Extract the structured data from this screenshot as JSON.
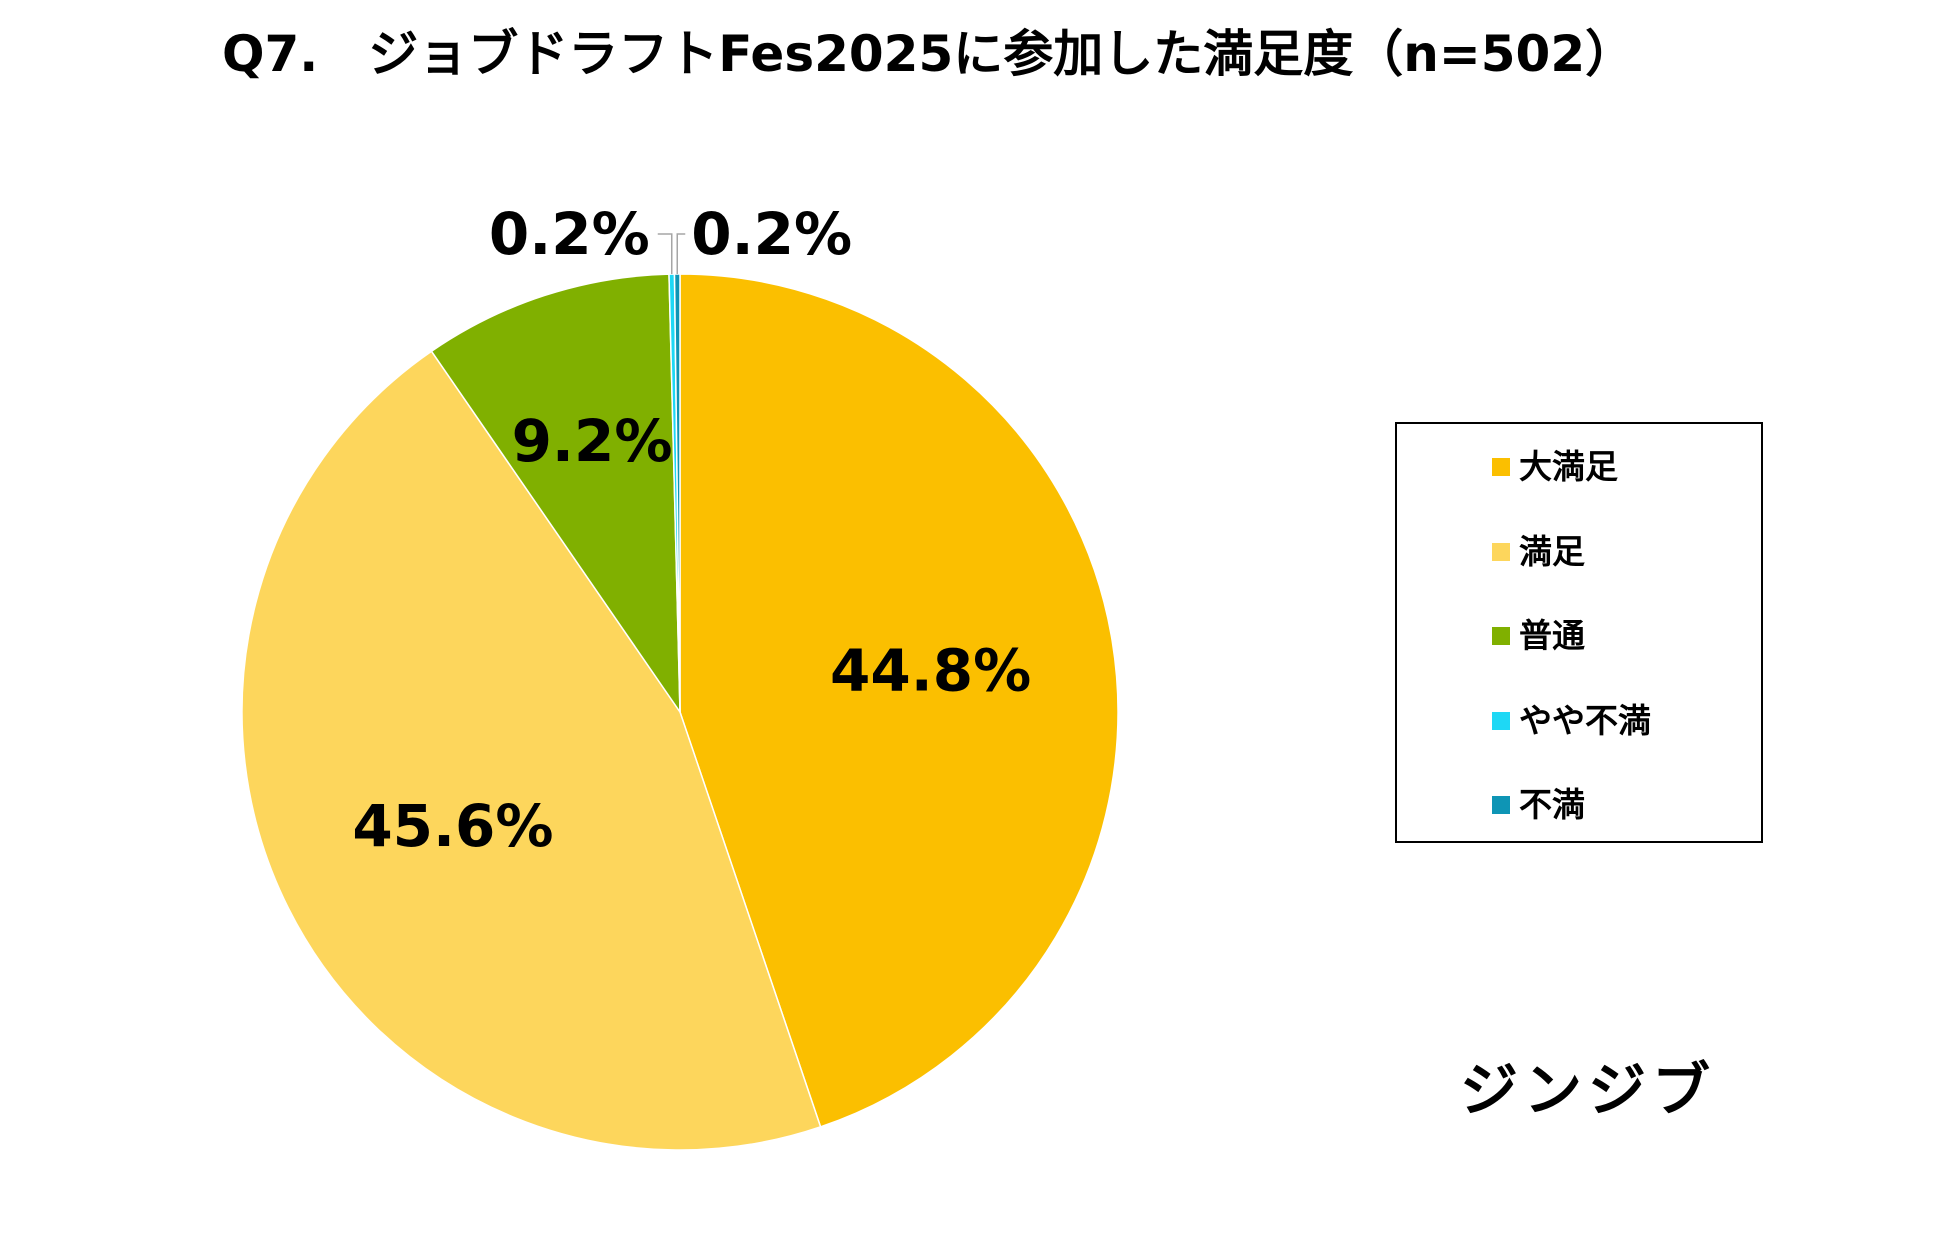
{
  "title": "Q7.　ジョブドラフトFes2025に参加した満足度（n=502）",
  "brand": "ジンジブ",
  "chart_data": {
    "type": "pie",
    "title": "Q7.　ジョブドラフトFes2025に参加した満足度（n=502）",
    "unit": "%",
    "legend_position": "right",
    "start_angle": "12 o'clock, clockwise",
    "categories": [
      "大満足",
      "満足",
      "普通",
      "やや不満",
      "不満"
    ],
    "values": [
      44.8,
      45.6,
      9.2,
      0.2,
      0.2
    ],
    "labels": [
      "44.8%",
      "45.6%",
      "9.2%",
      "0.2%",
      "0.2%"
    ],
    "colors": [
      "#FBBF00",
      "#FDD65C",
      "#80B000",
      "#1ED8F5",
      "#0E95B5"
    ]
  }
}
